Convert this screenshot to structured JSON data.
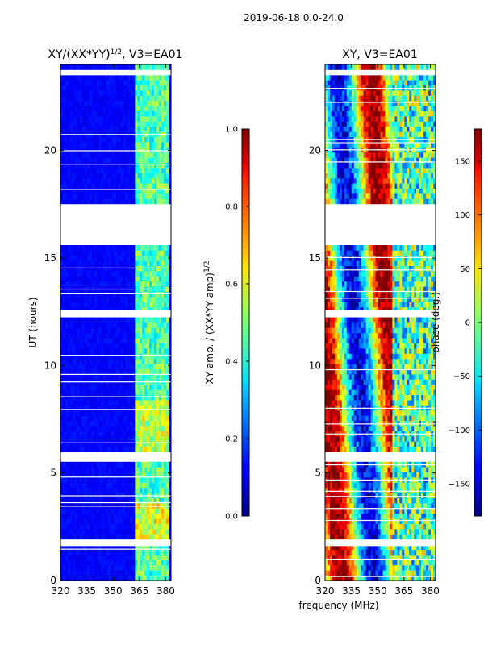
{
  "figure": {
    "suptitle": "2019-06-18 0.0-24.0",
    "xlabel": "frequency (MHz)"
  },
  "chart_data": [
    {
      "type": "heatmap",
      "title": "XY/(XX*YY)",
      "title_sup": "1/2",
      "title_suffix": ", V3=EA01",
      "xlabel": "frequency (MHz)",
      "ylabel": "UT (hours)",
      "xlim": [
        320,
        383
      ],
      "ylim": [
        0,
        24
      ],
      "xticks": [
        320,
        335,
        350,
        365,
        380
      ],
      "yticks": [
        0,
        5,
        10,
        15,
        20
      ],
      "colorbar": {
        "label": "XY amp. / (XX*YY amp)",
        "label_sup": "1/2",
        "range": [
          0.0,
          1.0
        ],
        "ticks": [
          "0.0",
          "0.2",
          "0.4",
          "0.6",
          "0.8",
          "1.0"
        ],
        "colormap": "jet"
      },
      "flagged_gaps_hours": [
        [
          15.6,
          17.4
        ],
        [
          12.3,
          12.6
        ],
        [
          5.6,
          5.9
        ],
        [
          1.6,
          1.9
        ],
        [
          23.5,
          23.7
        ]
      ],
      "description_values": {
        "background_low_freq": 0.1,
        "high_freq_band_mhz": [
          363,
          382
        ],
        "high_freq_level": 0.45
      }
    },
    {
      "type": "heatmap",
      "title": "XY, V3=EA01",
      "xlabel": "frequency (MHz)",
      "ylabel": "",
      "xlim": [
        320,
        383
      ],
      "ylim": [
        0,
        24
      ],
      "xticks": [
        320,
        335,
        350,
        365,
        380
      ],
      "yticks": [
        0,
        5,
        10,
        15,
        20
      ],
      "colorbar": {
        "label": "phase (deg.)",
        "range": [
          -180,
          180
        ],
        "ticks": [
          "−150",
          "−100",
          "−50",
          "0",
          "50",
          "100",
          "150"
        ],
        "colormap": "jet"
      },
      "flagged_gaps_hours": [
        [
          15.6,
          17.4
        ],
        [
          12.3,
          12.6
        ],
        [
          5.6,
          5.9
        ],
        [
          1.6,
          1.9
        ],
        [
          23.5,
          23.7
        ]
      ]
    }
  ]
}
